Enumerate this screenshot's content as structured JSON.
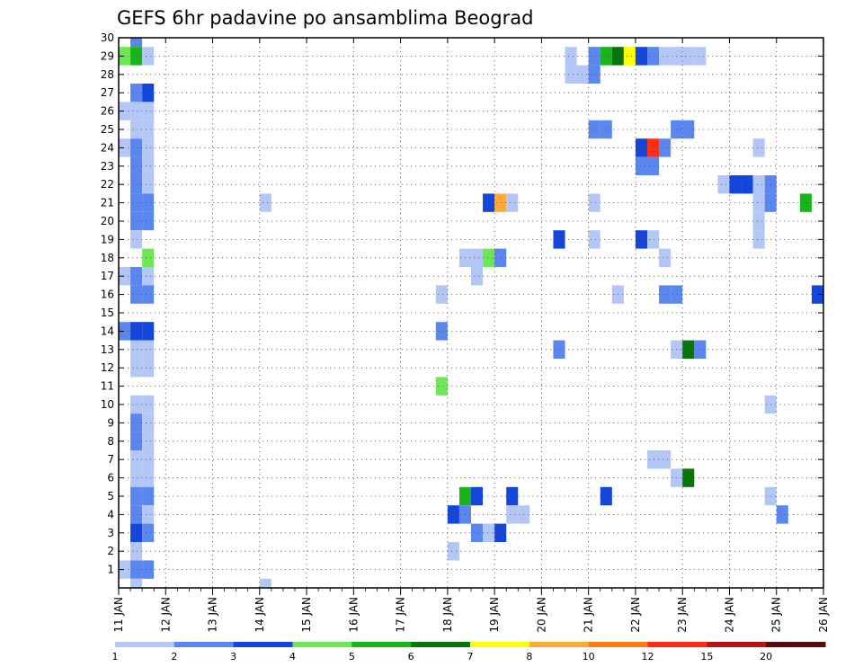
{
  "chart_data": {
    "type": "heatmap",
    "title": "GEFS 6hr padavine po ansamblima Beograd",
    "xlabel": "",
    "ylabel": "",
    "x_ticks": [
      "11 JAN",
      "12 JAN",
      "13 JAN",
      "14 JAN",
      "15 JAN",
      "16 JAN",
      "17 JAN",
      "18 JAN",
      "19 JAN",
      "20 JAN",
      "21 JAN",
      "22 JAN",
      "23 JAN",
      "24 JAN",
      "25 JAN",
      "26 JAN"
    ],
    "x_range_days": [
      11,
      26
    ],
    "y_ticks": [
      "1",
      "2",
      "3",
      "4",
      "5",
      "6",
      "7",
      "8",
      "9",
      "10",
      "11",
      "12",
      "13",
      "14",
      "15",
      "16",
      "17",
      "18",
      "19",
      "20",
      "21",
      "22",
      "23",
      "24",
      "25",
      "26",
      "27",
      "28",
      "29",
      "30"
    ],
    "y_range": [
      0,
      30
    ],
    "grid": "dotted",
    "colorbar": {
      "labels": [
        "1",
        "2",
        "3",
        "4",
        "5",
        "6",
        "7",
        "8",
        "10",
        "12",
        "15",
        "20"
      ],
      "colors": [
        "#b3c7f7",
        "#5a87ef",
        "#1446dc",
        "#6de854",
        "#19b419",
        "#087508",
        "#ffff00",
        "#ffa83c",
        "#ff7d14",
        "#ff2d14",
        "#b41414",
        "#5a0a0a"
      ]
    },
    "cells": [
      [
        11.25,
        30,
        1
      ],
      [
        11.0,
        29,
        3
      ],
      [
        11.25,
        29,
        4
      ],
      [
        11.5,
        29,
        0
      ],
      [
        11.25,
        27,
        1
      ],
      [
        11.5,
        27,
        2
      ],
      [
        11.0,
        26,
        0
      ],
      [
        11.25,
        26,
        0
      ],
      [
        11.5,
        26,
        0
      ],
      [
        11.25,
        25,
        0
      ],
      [
        11.5,
        25,
        0
      ],
      [
        11.0,
        24,
        0
      ],
      [
        11.25,
        24,
        1
      ],
      [
        11.5,
        24,
        0
      ],
      [
        11.25,
        23,
        1
      ],
      [
        11.5,
        23,
        0
      ],
      [
        11.25,
        22,
        1
      ],
      [
        11.5,
        22,
        0
      ],
      [
        11.25,
        21,
        1
      ],
      [
        11.5,
        21,
        1
      ],
      [
        11.25,
        20,
        1
      ],
      [
        11.5,
        20,
        1
      ],
      [
        11.25,
        19,
        0
      ],
      [
        11.5,
        18,
        3
      ],
      [
        11.0,
        17,
        0
      ],
      [
        11.25,
        17,
        1
      ],
      [
        11.5,
        17,
        0
      ],
      [
        11.25,
        16,
        1
      ],
      [
        11.5,
        16,
        1
      ],
      [
        11.0,
        14,
        1
      ],
      [
        11.25,
        14,
        2
      ],
      [
        11.5,
        14,
        2
      ],
      [
        11.25,
        13,
        0
      ],
      [
        11.5,
        13,
        0
      ],
      [
        11.25,
        12,
        0
      ],
      [
        11.5,
        12,
        0
      ],
      [
        11.25,
        10,
        0
      ],
      [
        11.5,
        10,
        0
      ],
      [
        11.25,
        9,
        1
      ],
      [
        11.5,
        9,
        0
      ],
      [
        11.25,
        8,
        1
      ],
      [
        11.5,
        8,
        0
      ],
      [
        11.25,
        7,
        0
      ],
      [
        11.5,
        7,
        0
      ],
      [
        11.25,
        6,
        0
      ],
      [
        11.5,
        6,
        0
      ],
      [
        11.25,
        5,
        1
      ],
      [
        11.5,
        5,
        1
      ],
      [
        11.25,
        4,
        1
      ],
      [
        11.5,
        4,
        0
      ],
      [
        11.25,
        3,
        2
      ],
      [
        11.5,
        3,
        1
      ],
      [
        11.25,
        2,
        0
      ],
      [
        11.0,
        1,
        0
      ],
      [
        11.25,
        1,
        1
      ],
      [
        11.5,
        1,
        1
      ],
      [
        11.25,
        0,
        0
      ],
      [
        14.0,
        21,
        0
      ],
      [
        14.0,
        0,
        0
      ],
      [
        17.75,
        16,
        0
      ],
      [
        17.75,
        14,
        1
      ],
      [
        17.75,
        11,
        3
      ],
      [
        18.0,
        2,
        0
      ],
      [
        18.25,
        18,
        0
      ],
      [
        18.5,
        18,
        0
      ],
      [
        18.5,
        17,
        0
      ],
      [
        18.75,
        18,
        3
      ],
      [
        19.0,
        18,
        1
      ],
      [
        18.75,
        21,
        2
      ],
      [
        19.0,
        21,
        7
      ],
      [
        19.25,
        21,
        0
      ],
      [
        18.25,
        5,
        4
      ],
      [
        18.5,
        5,
        2
      ],
      [
        18.0,
        4,
        2
      ],
      [
        18.25,
        4,
        1
      ],
      [
        18.5,
        3,
        1
      ],
      [
        18.75,
        3,
        0
      ],
      [
        19.0,
        3,
        2
      ],
      [
        19.25,
        5,
        2
      ],
      [
        19.25,
        4,
        0
      ],
      [
        19.5,
        4,
        0
      ],
      [
        20.25,
        19,
        2
      ],
      [
        20.25,
        13,
        1
      ],
      [
        20.5,
        29,
        0
      ],
      [
        20.5,
        28,
        0
      ],
      [
        20.75,
        28,
        0
      ],
      [
        21.0,
        29,
        1
      ],
      [
        21.25,
        29,
        4
      ],
      [
        21.5,
        29,
        5
      ],
      [
        21.75,
        29,
        6
      ],
      [
        22.0,
        29,
        2
      ],
      [
        22.25,
        29,
        1
      ],
      [
        22.5,
        29,
        0
      ],
      [
        21.0,
        25,
        1
      ],
      [
        21.25,
        25,
        1
      ],
      [
        21.0,
        21,
        0
      ],
      [
        21.0,
        19,
        0
      ],
      [
        21.5,
        16,
        0
      ],
      [
        21.25,
        5,
        2
      ],
      [
        21.0,
        28,
        1
      ],
      [
        22.0,
        24,
        2
      ],
      [
        22.25,
        24,
        9
      ],
      [
        22.5,
        24,
        1
      ],
      [
        22.0,
        23,
        1
      ],
      [
        22.25,
        23,
        1
      ],
      [
        22.0,
        19,
        2
      ],
      [
        22.25,
        19,
        0
      ],
      [
        22.5,
        18,
        0
      ],
      [
        22.5,
        16,
        1
      ],
      [
        22.75,
        16,
        1
      ],
      [
        22.25,
        7,
        0
      ],
      [
        22.5,
        7,
        0
      ],
      [
        22.75,
        29,
        0
      ],
      [
        23.0,
        29,
        0
      ],
      [
        23.25,
        29,
        0
      ],
      [
        22.75,
        25,
        1
      ],
      [
        23.0,
        25,
        1
      ],
      [
        22.75,
        13,
        0
      ],
      [
        23.0,
        13,
        5
      ],
      [
        23.25,
        13,
        1
      ],
      [
        22.75,
        6,
        0
      ],
      [
        23.0,
        6,
        5
      ],
      [
        23.75,
        22,
        0
      ],
      [
        24.0,
        22,
        2
      ],
      [
        24.25,
        22,
        2
      ],
      [
        24.5,
        22,
        0
      ],
      [
        24.75,
        22,
        1
      ],
      [
        24.5,
        24,
        0
      ],
      [
        24.5,
        21,
        0
      ],
      [
        24.75,
        21,
        1
      ],
      [
        24.5,
        20,
        0
      ],
      [
        24.5,
        19,
        0
      ],
      [
        24.75,
        10,
        0
      ],
      [
        24.75,
        5,
        0
      ],
      [
        25.0,
        4,
        1
      ],
      [
        25.5,
        21,
        4
      ],
      [
        25.75,
        16,
        2
      ]
    ]
  }
}
